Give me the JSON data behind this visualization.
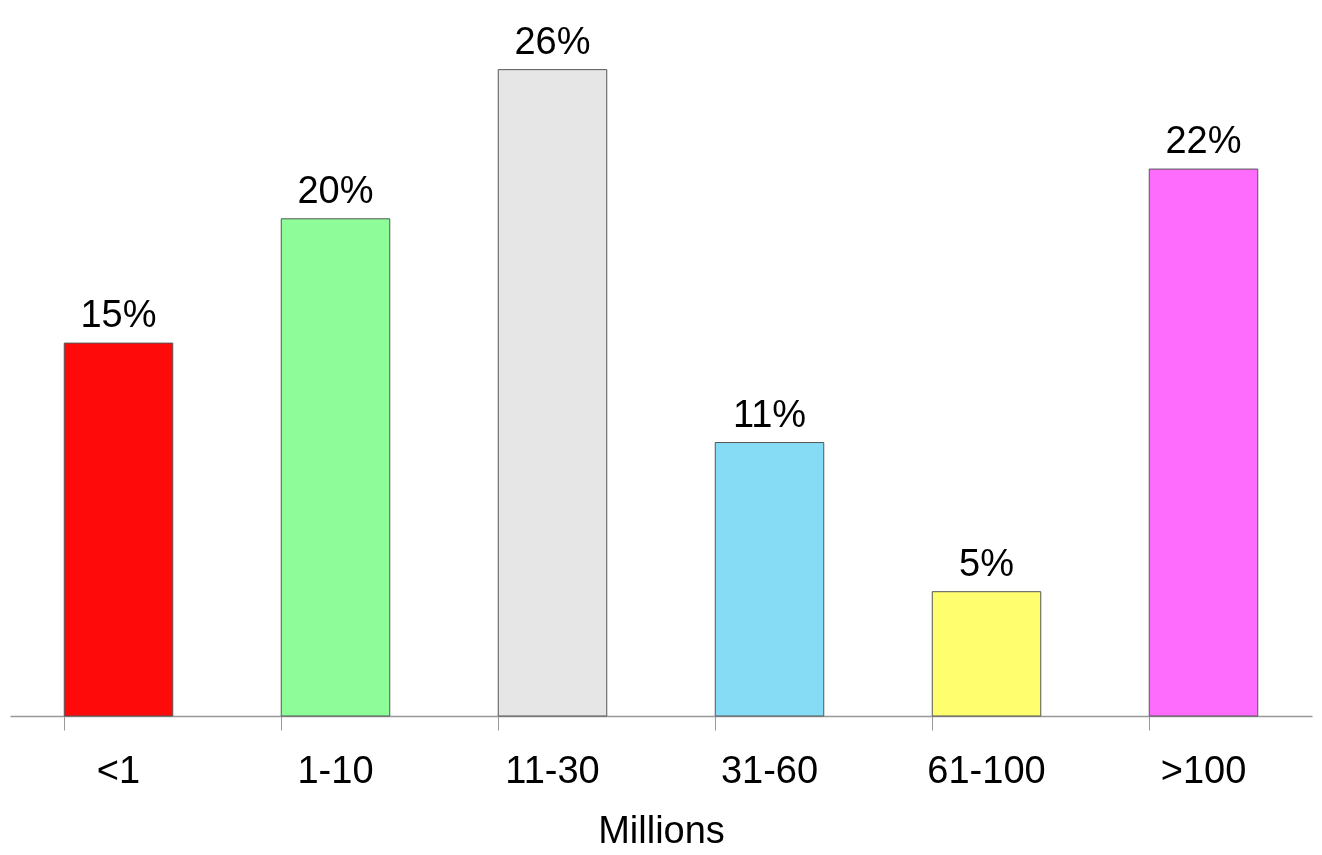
{
  "chart_data": {
    "type": "bar",
    "xlabel": "Millions",
    "categories": [
      "<1",
      "1-10",
      "11-30",
      "31-60",
      "61-100",
      ">100"
    ],
    "values": [
      15,
      20,
      26,
      11,
      5,
      22
    ],
    "value_labels": [
      "15%",
      "20%",
      "26%",
      "11%",
      "5%",
      "22%"
    ],
    "colors": [
      "#fe0a0a",
      "#8dfc99",
      "#e6e6e6",
      "#86dcf5",
      "#fffe6e",
      "#fe6cfe"
    ],
    "tick_labels": "x",
    "grid": false
  }
}
